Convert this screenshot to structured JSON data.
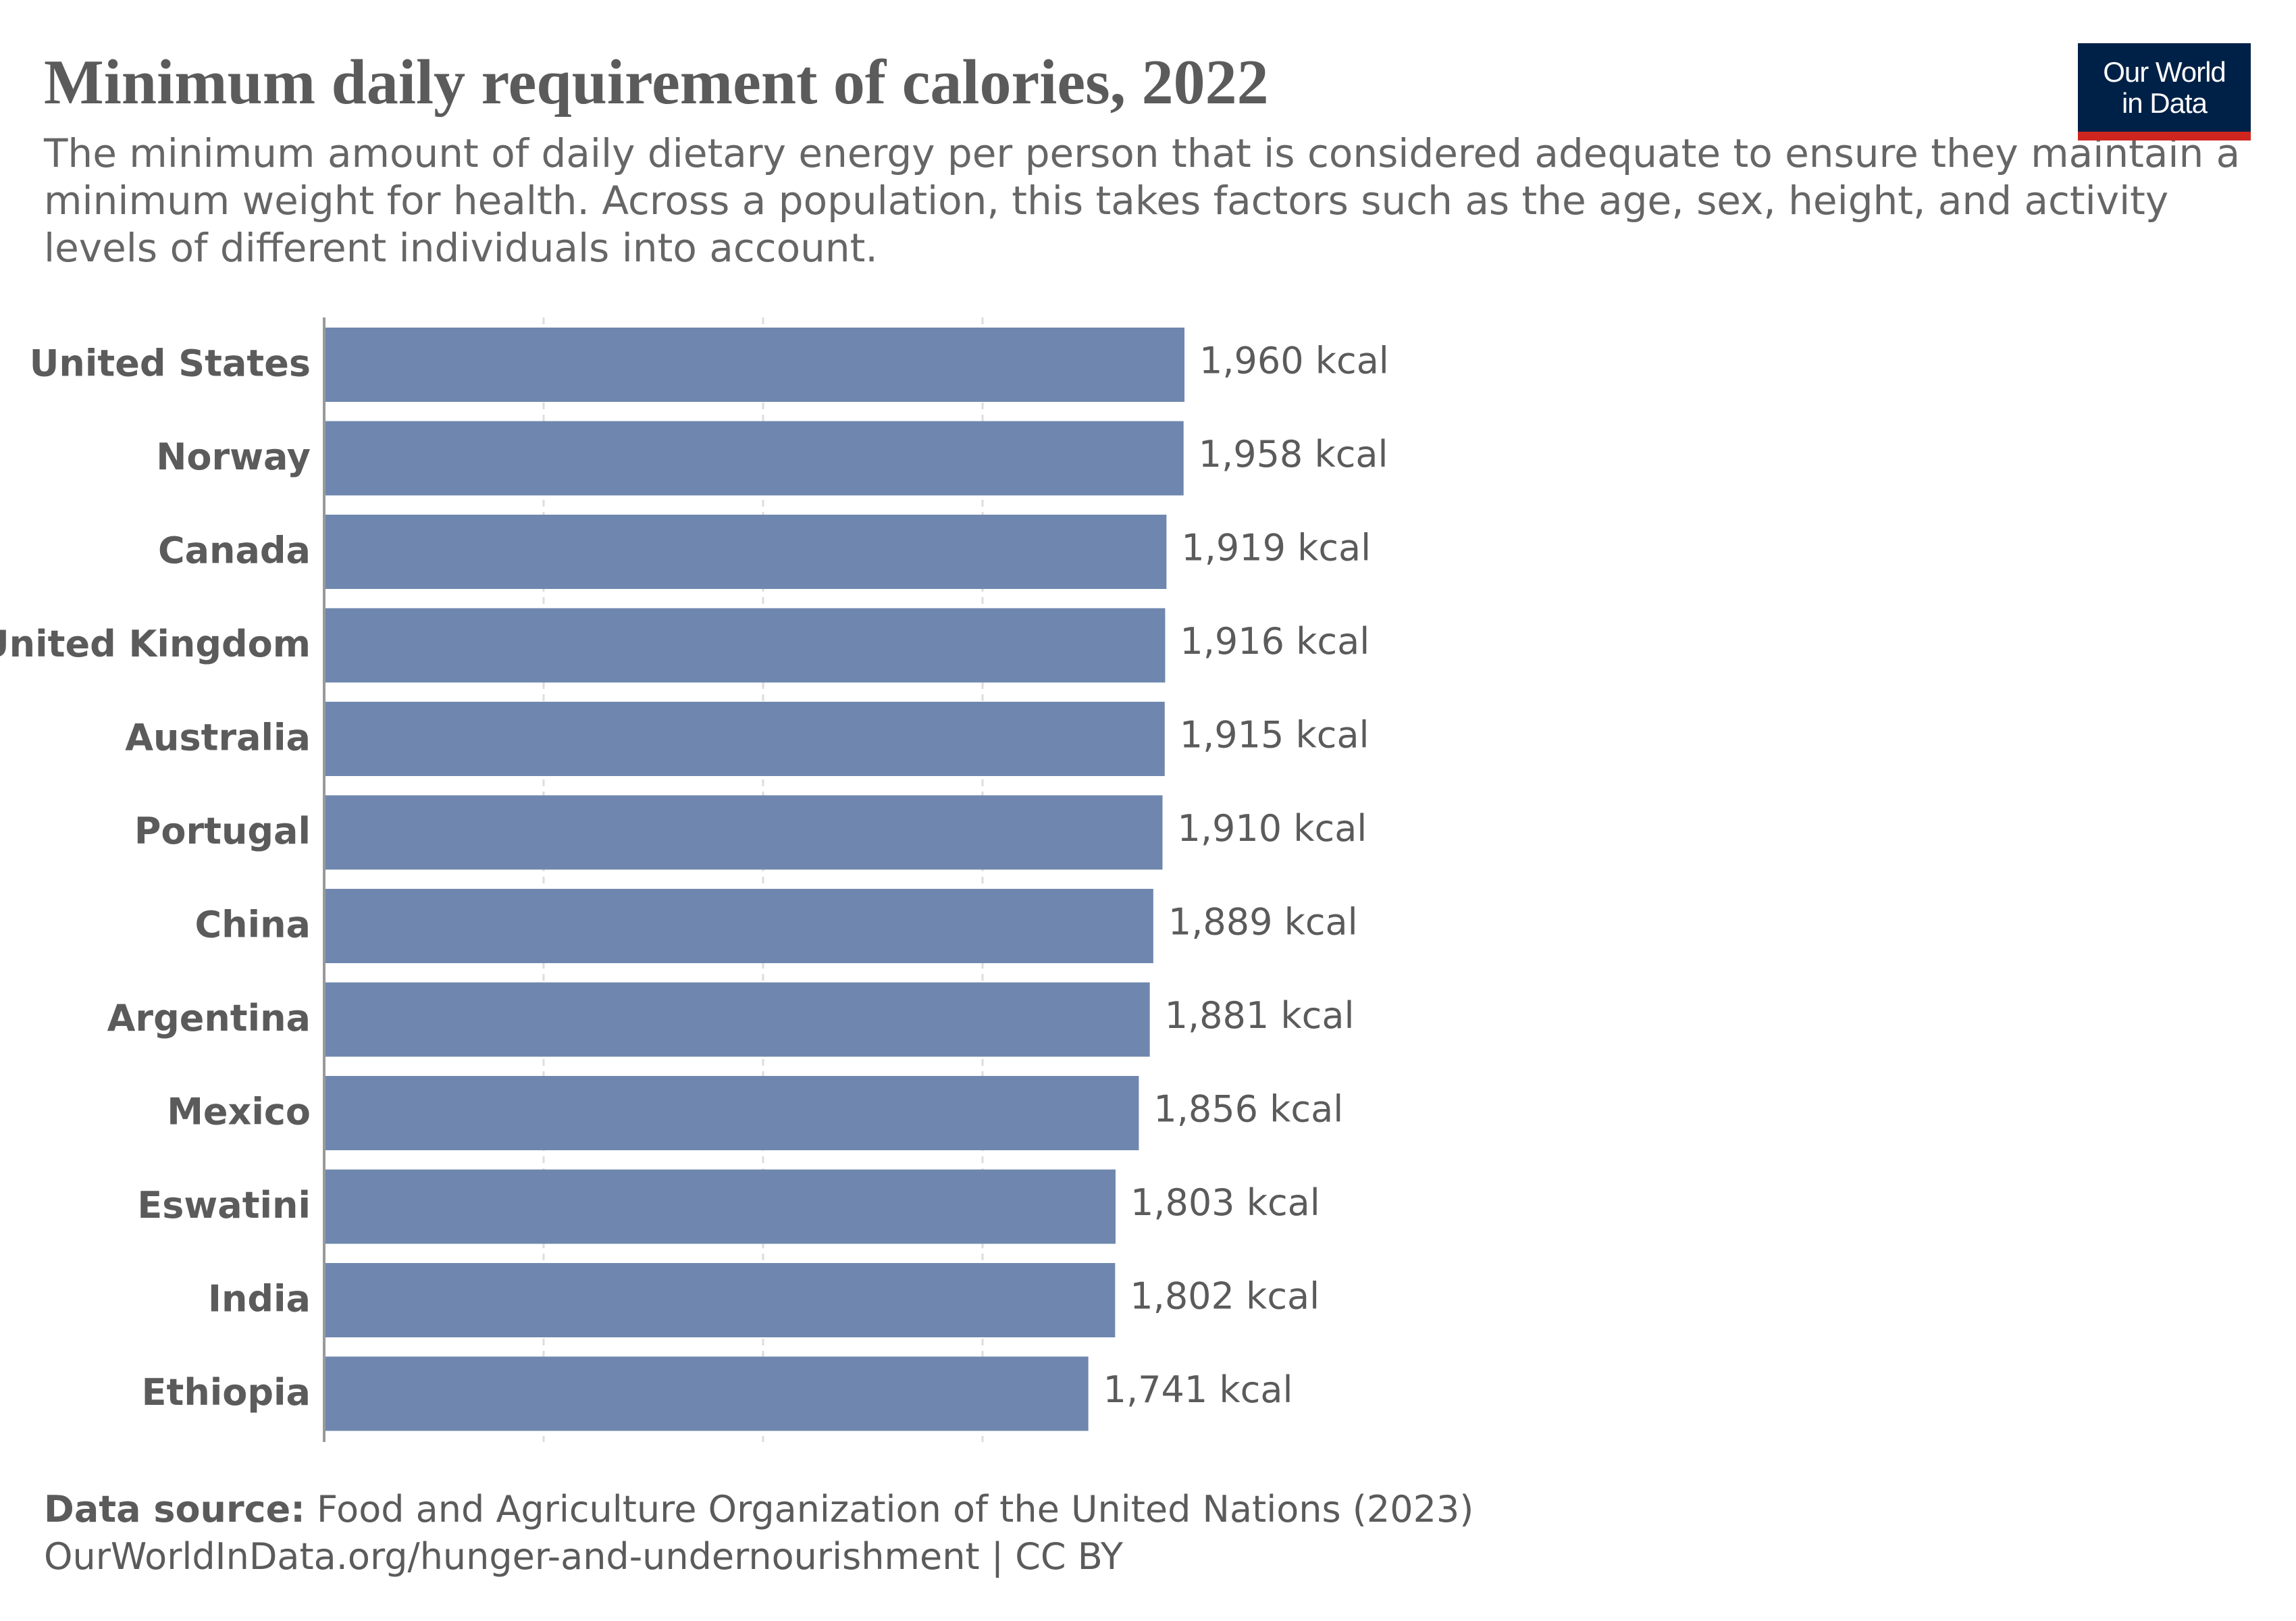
{
  "header": {
    "title": "Minimum daily requirement of calories, 2022",
    "subtitle": "The minimum amount of daily dietary energy per person that is considered adequate to ensure they maintain a minimum weight for health. Across a population, this takes factors such as the age, sex, height, and activity levels of different individuals into account.",
    "logo_line1": "Our World",
    "logo_line2": "in Data"
  },
  "footer": {
    "source_label": "Data source:",
    "source_text": "Food and Agriculture Organization of the United Nations (2023)",
    "url_license": "OurWorldInData.org/hunger-and-undernourishment | CC BY"
  },
  "colors": {
    "bar": "#6f87ae",
    "grid": "#dddddd",
    "axis": "#999999",
    "text": "#5b5b5b",
    "logo_bg": "#002147",
    "logo_accent": "#ce261e"
  },
  "chart_data": {
    "type": "bar",
    "orientation": "horizontal",
    "categories": [
      "United States",
      "Norway",
      "Canada",
      "United Kingdom",
      "Australia",
      "Portugal",
      "China",
      "Argentina",
      "Mexico",
      "Eswatini",
      "India",
      "Ethiopia"
    ],
    "values": [
      1960,
      1958,
      1919,
      1916,
      1915,
      1910,
      1889,
      1881,
      1856,
      1803,
      1802,
      1741
    ],
    "value_labels": [
      "1,960 kcal",
      "1,958 kcal",
      "1,919 kcal",
      "1,916 kcal",
      "1,915 kcal",
      "1,910 kcal",
      "1,889 kcal",
      "1,881 kcal",
      "1,856 kcal",
      "1,803 kcal",
      "1,802 kcal",
      "1,741 kcal"
    ],
    "unit": "kcal",
    "xlim": [
      0,
      2000
    ],
    "gridlines_at": [
      500,
      1000,
      1500
    ],
    "grid": true,
    "legend": "none"
  }
}
